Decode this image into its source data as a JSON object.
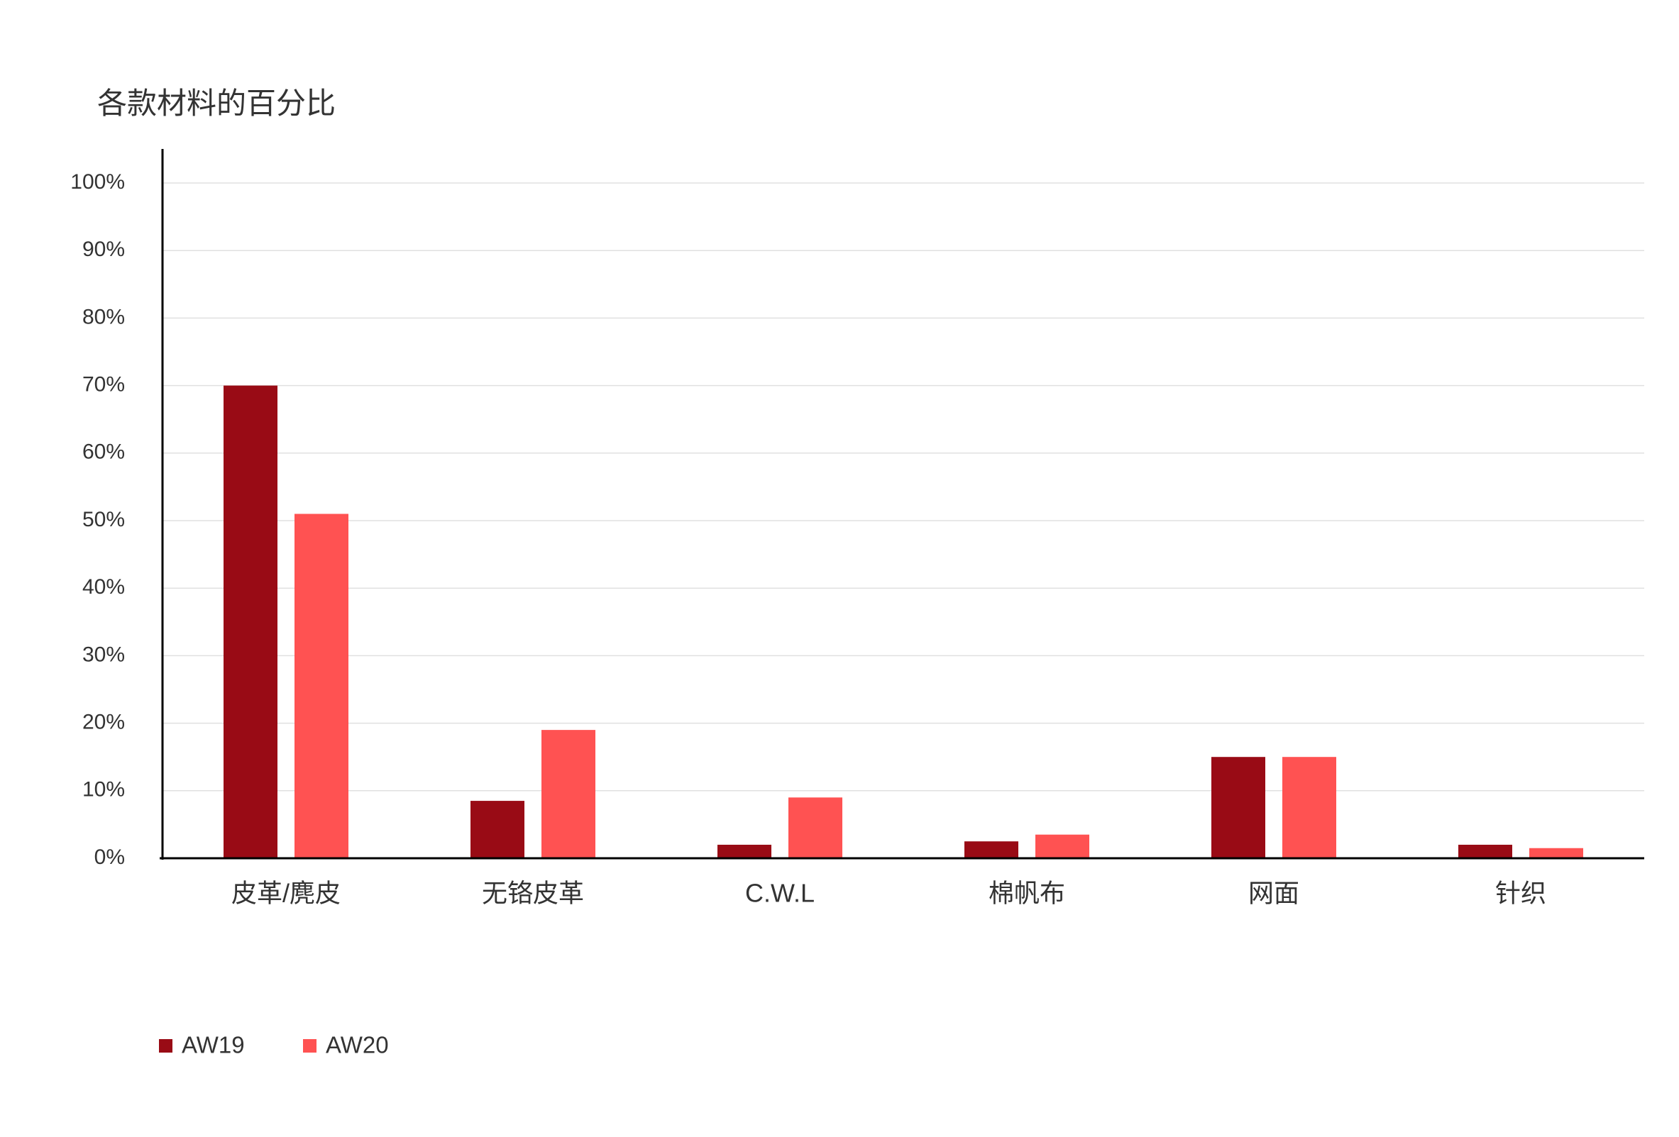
{
  "chart_data": {
    "type": "bar",
    "title": "各款材料的百分比",
    "categories": [
      "皮革/麂皮",
      "无铬皮革",
      "C.W.L",
      "棉帆布",
      "网面",
      "针织"
    ],
    "series": [
      {
        "name": "AW19",
        "color": "#990b15",
        "values": [
          70,
          8.5,
          2,
          2.5,
          15,
          2
        ]
      },
      {
        "name": "AW20",
        "color": "#ff5252",
        "values": [
          51,
          19,
          9,
          3.5,
          15,
          1.5
        ]
      }
    ],
    "ylim": [
      0,
      100
    ],
    "yticks": [
      {
        "value": 0,
        "label": "0%"
      },
      {
        "value": 10,
        "label": "10%"
      },
      {
        "value": 20,
        "label": "20%"
      },
      {
        "value": 30,
        "label": "30%"
      },
      {
        "value": 40,
        "label": "40%"
      },
      {
        "value": 50,
        "label": "50%"
      },
      {
        "value": 60,
        "label": "60%"
      },
      {
        "value": 70,
        "label": "70%"
      },
      {
        "value": 80,
        "label": "80%"
      },
      {
        "value": 90,
        "label": "90%"
      },
      {
        "value": 100,
        "label": "100%"
      }
    ],
    "grid": true,
    "legend": "bottom-left"
  }
}
